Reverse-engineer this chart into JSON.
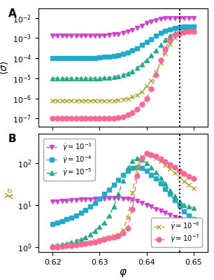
{
  "phi_vline": 0.647,
  "panel_A": {
    "series": [
      {
        "label": "gdot_1e-3",
        "color": "#cc44cc",
        "marker": "v",
        "markersize": 4.5,
        "phi": [
          0.62,
          0.621,
          0.622,
          0.623,
          0.624,
          0.625,
          0.626,
          0.627,
          0.628,
          0.629,
          0.63,
          0.631,
          0.632,
          0.633,
          0.634,
          0.635,
          0.636,
          0.637,
          0.638,
          0.639,
          0.64,
          0.641,
          0.642,
          0.643,
          0.644,
          0.645,
          0.646,
          0.647,
          0.648,
          0.649,
          0.65
        ],
        "sigma": [
          0.0013,
          0.0013,
          0.0013,
          0.0013,
          0.0013,
          0.0013,
          0.0013,
          0.0013,
          0.0013,
          0.0013,
          0.0013,
          0.00135,
          0.0014,
          0.0015,
          0.0016,
          0.0018,
          0.0021,
          0.0025,
          0.0032,
          0.0042,
          0.0055,
          0.0068,
          0.008,
          0.009,
          0.0095,
          0.0098,
          0.01,
          0.01,
          0.01,
          0.01,
          0.01
        ]
      },
      {
        "label": "gdot_1e-4",
        "color": "#22aacc",
        "marker": "s",
        "markersize": 4.5,
        "phi": [
          0.62,
          0.621,
          0.622,
          0.623,
          0.624,
          0.625,
          0.626,
          0.627,
          0.628,
          0.629,
          0.63,
          0.631,
          0.632,
          0.633,
          0.634,
          0.635,
          0.636,
          0.637,
          0.638,
          0.639,
          0.64,
          0.641,
          0.642,
          0.643,
          0.644,
          0.645,
          0.646,
          0.647,
          0.648,
          0.649,
          0.65
        ],
        "sigma": [
          0.0001,
          0.0001,
          0.0001,
          0.0001,
          0.0001,
          0.0001,
          0.0001,
          0.0001,
          0.0001,
          0.000105,
          0.00011,
          0.000115,
          0.00012,
          0.00013,
          0.00014,
          0.00016,
          0.00019,
          0.00024,
          0.00032,
          0.00045,
          0.00065,
          0.0009,
          0.0013,
          0.0018,
          0.0023,
          0.0028,
          0.0032,
          0.0035,
          0.0036,
          0.0037,
          0.0037
        ]
      },
      {
        "label": "gdot_1e-5",
        "color": "#22aa88",
        "marker": "^",
        "markersize": 4.5,
        "phi": [
          0.62,
          0.621,
          0.622,
          0.623,
          0.624,
          0.625,
          0.626,
          0.627,
          0.628,
          0.629,
          0.63,
          0.631,
          0.632,
          0.633,
          0.634,
          0.635,
          0.636,
          0.637,
          0.638,
          0.639,
          0.64,
          0.641,
          0.642,
          0.643,
          0.644,
          0.645,
          0.646,
          0.647,
          0.648,
          0.649,
          0.65
        ],
        "sigma": [
          1e-05,
          1e-05,
          1e-05,
          1e-05,
          1e-05,
          1e-05,
          1e-05,
          1e-05,
          1e-05,
          1e-05,
          1e-05,
          1.05e-05,
          1.1e-05,
          1.2e-05,
          1.3e-05,
          1.5e-05,
          1.8e-05,
          2.3e-05,
          3.2e-05,
          5e-05,
          8e-05,
          0.00014,
          0.00025,
          0.00045,
          0.0008,
          0.0013,
          0.0018,
          0.0022,
          0.0025,
          0.0026,
          0.0026
        ]
      },
      {
        "label": "gdot_1e-6",
        "color": "#aaaa22",
        "marker": "x",
        "markersize": 5,
        "phi": [
          0.62,
          0.621,
          0.622,
          0.623,
          0.624,
          0.625,
          0.626,
          0.627,
          0.628,
          0.629,
          0.63,
          0.631,
          0.632,
          0.633,
          0.634,
          0.635,
          0.636,
          0.637,
          0.638,
          0.639,
          0.64,
          0.641,
          0.642,
          0.643,
          0.644,
          0.645,
          0.646,
          0.647,
          0.648,
          0.649,
          0.65
        ],
        "sigma": [
          8e-07,
          8e-07,
          8e-07,
          8e-07,
          8e-07,
          8e-07,
          8e-07,
          8e-07,
          8e-07,
          8e-07,
          8e-07,
          8e-07,
          8e-07,
          8e-07,
          8.5e-07,
          9e-07,
          1e-06,
          1.2e-06,
          1.5e-06,
          2.2e-06,
          4e-06,
          8e-06,
          2e-05,
          6e-05,
          0.00018,
          0.0005,
          0.001,
          0.0016,
          0.002,
          0.0022,
          0.0023
        ]
      },
      {
        "label": "gdot_1e-7",
        "color": "#ff6699",
        "marker": "o",
        "markersize": 5,
        "phi": [
          0.62,
          0.621,
          0.622,
          0.623,
          0.624,
          0.625,
          0.626,
          0.627,
          0.628,
          0.629,
          0.63,
          0.631,
          0.632,
          0.633,
          0.634,
          0.635,
          0.636,
          0.637,
          0.638,
          0.639,
          0.64,
          0.641,
          0.642,
          0.643,
          0.644,
          0.645,
          0.646,
          0.647,
          0.648,
          0.649,
          0.65
        ],
        "sigma": [
          1e-07,
          1e-07,
          1e-07,
          1e-07,
          1e-07,
          1e-07,
          1e-07,
          1e-07,
          1e-07,
          1e-07,
          1e-07,
          1e-07,
          1e-07,
          1e-07,
          1.1e-07,
          1.2e-07,
          1.5e-07,
          2e-07,
          3e-07,
          5e-07,
          1e-06,
          3e-06,
          1.5e-05,
          8e-05,
          0.0003,
          0.0008,
          0.0014,
          0.0018,
          0.002,
          0.0021,
          0.0021
        ]
      }
    ],
    "ylabel": "$\\langle\\sigma\\rangle$",
    "ylim": [
      4e-08,
      0.03
    ],
    "yticks": [
      1e-07,
      1e-06,
      1e-05,
      0.0001,
      0.001,
      0.01
    ]
  },
  "panel_B": {
    "series": [
      {
        "label": "$\\dot{\\gamma} = 10^{-3}$",
        "color": "#cc44cc",
        "marker": "v",
        "markersize": 4.5,
        "phi": [
          0.62,
          0.621,
          0.622,
          0.623,
          0.624,
          0.625,
          0.626,
          0.627,
          0.628,
          0.629,
          0.63,
          0.631,
          0.632,
          0.633,
          0.634,
          0.635,
          0.636,
          0.637,
          0.638,
          0.639,
          0.64,
          0.641,
          0.642,
          0.643,
          0.644,
          0.645,
          0.646,
          0.647,
          0.648,
          0.649,
          0.65
        ],
        "chi": [
          12.0,
          12.2,
          12.4,
          12.6,
          12.8,
          13.0,
          13.3,
          13.5,
          13.7,
          13.8,
          14.0,
          14.2,
          14.3,
          14.4,
          14.4,
          14.2,
          13.8,
          13.2,
          12.3,
          11.2,
          10.0,
          9.0,
          8.0,
          7.2,
          6.5,
          5.8,
          5.2,
          4.8,
          4.4,
          4.1,
          3.8
        ]
      },
      {
        "label": "$\\dot{\\gamma} = 10^{-4}$",
        "color": "#22aacc",
        "marker": "s",
        "markersize": 4.5,
        "phi": [
          0.62,
          0.621,
          0.622,
          0.623,
          0.624,
          0.625,
          0.626,
          0.627,
          0.628,
          0.629,
          0.63,
          0.631,
          0.632,
          0.633,
          0.634,
          0.635,
          0.636,
          0.637,
          0.638,
          0.639,
          0.64,
          0.641,
          0.642,
          0.643,
          0.644,
          0.645,
          0.646,
          0.647,
          0.648,
          0.649,
          0.65
        ],
        "chi": [
          3.5,
          3.8,
          4.1,
          4.5,
          5.0,
          5.6,
          6.5,
          7.5,
          9.0,
          11.0,
          14.0,
          18.0,
          23.0,
          30.0,
          40.0,
          52.0,
          65.0,
          75.0,
          80.0,
          75.0,
          65.0,
          52.0,
          42.0,
          32.0,
          24.0,
          18.0,
          13.0,
          9.5,
          7.0,
          5.5,
          4.5
        ]
      },
      {
        "label": "$\\dot{\\gamma} = 10^{-5}$",
        "color": "#22aa88",
        "marker": "^",
        "markersize": 4.5,
        "phi": [
          0.62,
          0.621,
          0.622,
          0.623,
          0.624,
          0.625,
          0.626,
          0.627,
          0.628,
          0.629,
          0.63,
          0.631,
          0.632,
          0.633,
          0.634,
          0.635,
          0.636,
          0.637,
          0.638,
          0.639,
          0.64,
          0.641,
          0.642,
          0.643,
          0.644,
          0.645,
          0.646,
          0.647,
          0.648,
          0.649,
          0.65
        ],
        "chi": [
          1.05,
          1.1,
          1.15,
          1.2,
          1.3,
          1.4,
          1.5,
          1.7,
          2.0,
          2.4,
          3.0,
          3.8,
          5.5,
          9.0,
          18.0,
          38.0,
          75.0,
          110.0,
          130.0,
          120.0,
          100.0,
          80.0,
          60.0,
          45.0,
          32.0,
          22.0,
          16.0,
          12.0,
          10.0,
          9.0,
          8.5
        ]
      },
      {
        "label": "$\\dot{\\gamma} = 10^{-6}$",
        "color": "#aaaa22",
        "marker": "x",
        "markersize": 5,
        "phi": [
          0.62,
          0.621,
          0.622,
          0.623,
          0.624,
          0.625,
          0.626,
          0.627,
          0.628,
          0.629,
          0.63,
          0.631,
          0.632,
          0.633,
          0.634,
          0.635,
          0.636,
          0.637,
          0.638,
          0.639,
          0.64,
          0.641,
          0.642,
          0.643,
          0.644,
          0.645,
          0.646,
          0.647,
          0.648,
          0.649,
          0.65
        ],
        "chi": [
          1.0,
          1.02,
          1.05,
          1.08,
          1.1,
          1.15,
          1.2,
          1.25,
          1.3,
          1.4,
          1.5,
          1.6,
          1.7,
          1.8,
          2.0,
          2.5,
          5.0,
          20.0,
          80.0,
          140.0,
          160.0,
          150.0,
          130.0,
          110.0,
          90.0,
          72.0,
          58.0,
          46.0,
          37.0,
          30.0,
          25.0
        ]
      },
      {
        "label": "$\\dot{\\gamma} = 10^{-7}$",
        "color": "#ff6699",
        "marker": "o",
        "markersize": 5,
        "phi": [
          0.62,
          0.621,
          0.622,
          0.623,
          0.624,
          0.625,
          0.626,
          0.627,
          0.628,
          0.629,
          0.63,
          0.631,
          0.632,
          0.633,
          0.634,
          0.635,
          0.636,
          0.637,
          0.638,
          0.639,
          0.64,
          0.641,
          0.642,
          0.643,
          0.644,
          0.645,
          0.646,
          0.647,
          0.648,
          0.649,
          0.65
        ],
        "chi": [
          1.0,
          1.0,
          1.02,
          1.05,
          1.08,
          1.1,
          1.15,
          1.2,
          1.25,
          1.3,
          1.4,
          1.5,
          1.6,
          1.7,
          1.85,
          2.1,
          2.8,
          8.0,
          50.0,
          130.0,
          170.0,
          160.0,
          145.0,
          125.0,
          108.0,
          92.0,
          78.0,
          65.0,
          55.0,
          48.0,
          42.0
        ]
      }
    ],
    "ylabel": "$\\chi_\\sigma$",
    "ylabel_color": "#aa8800",
    "ylim": [
      0.75,
      500
    ],
    "yticks": [
      1,
      10,
      100
    ],
    "legend1_idx": [
      0,
      1,
      2
    ],
    "legend2_idx": [
      3,
      4
    ]
  },
  "xlabel": "$\\varphi$",
  "xlim": [
    0.617,
    0.653
  ],
  "xticks": [
    0.62,
    0.63,
    0.64,
    0.65
  ],
  "xticklabels": [
    "0.62",
    "0.63",
    "0.64",
    "0.65"
  ]
}
